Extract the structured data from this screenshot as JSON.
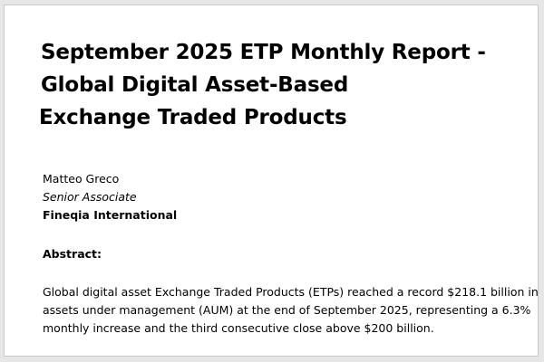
{
  "document": {
    "title_lines": [
      "September 2025 ETP Monthly Report -",
      "Global Digital Asset-Based",
      "Exchange Traded Products"
    ],
    "author": {
      "name": "Matteo Greco",
      "role": "Senior Associate",
      "organization": "Fineqia International"
    },
    "abstract": {
      "heading": "Abstract:",
      "lines": [
        "Global digital asset Exchange Traded Products (ETPs) reached a record $218.1 billion in",
        "assets under management (AUM) at the end of September 2025, representing a 6.3%",
        "monthly increase and the third consecutive close above $200 billion."
      ]
    }
  }
}
